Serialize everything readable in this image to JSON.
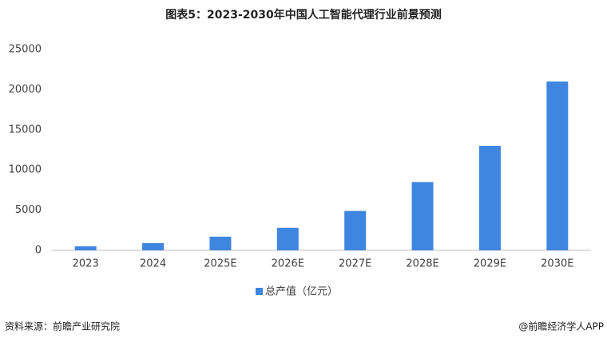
{
  "chart_data": {
    "type": "bar",
    "title": "图表5：2023-2030年中国人工智能代理行业前景预测",
    "categories": [
      "2023",
      "2024",
      "2025E",
      "2026E",
      "2027E",
      "2028E",
      "2029E",
      "2030E"
    ],
    "series": [
      {
        "name": "总产值（亿元）",
        "color": "#3f86e0",
        "values": [
          500,
          900,
          1700,
          2800,
          4900,
          8500,
          13000,
          21000
        ]
      }
    ],
    "ylim": [
      0,
      25000
    ],
    "yticks": [
      0,
      5000,
      10000,
      15000,
      20000,
      25000
    ],
    "grid": false,
    "legend": "bottom",
    "source": "资料来源：前瞻产业研究院",
    "credit": "@前瞻经济学人APP"
  }
}
